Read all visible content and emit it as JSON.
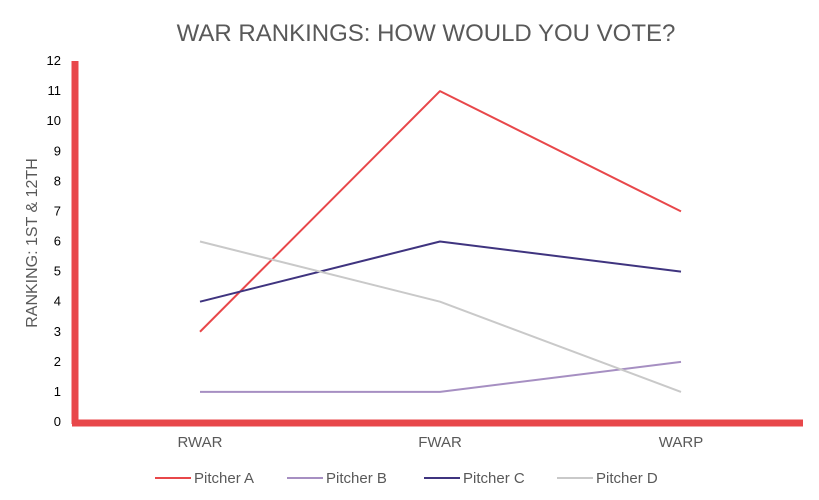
{
  "chart_data": {
    "type": "line",
    "title": "WAR RANKINGS: HOW WOULD YOU VOTE?",
    "xlabel": "",
    "ylabel": "RANKING:   1ST &  12TH",
    "categories": [
      "RWAR",
      "FWAR",
      "WARP"
    ],
    "ylim": [
      0,
      12
    ],
    "yticks": [
      0,
      1,
      2,
      3,
      4,
      5,
      6,
      7,
      8,
      9,
      10,
      11,
      12
    ],
    "axis_color": "#e8474a",
    "grid": false,
    "legend_position": "bottom",
    "series": [
      {
        "name": "Pitcher A",
        "color": "#e8474a",
        "values": [
          3,
          11,
          7
        ]
      },
      {
        "name": "Pitcher B",
        "color": "#a68fc2",
        "values": [
          1,
          1,
          2
        ]
      },
      {
        "name": "Pitcher C",
        "color": "#3f347f",
        "values": [
          4,
          6,
          5
        ]
      },
      {
        "name": "Pitcher D",
        "color": "#c9c9c9",
        "values": [
          6,
          4,
          1
        ]
      }
    ]
  }
}
